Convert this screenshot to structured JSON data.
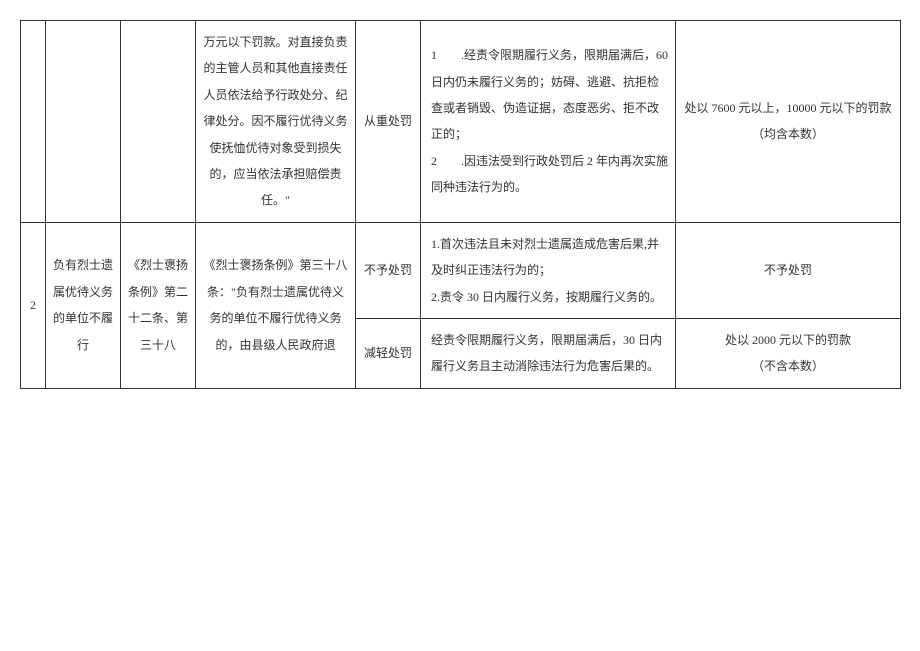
{
  "table": {
    "rows": [
      {
        "num": "",
        "reason": "",
        "basis": "",
        "regulation": "万元以下罚款。对直接负责的主管人员和其他直接责任人员依法给予行政处分、纪律处分。因不履行优待义务使抚恤优待对象受到损失的，应当依法承担赔偿责任。\"",
        "level": "从重处罚",
        "condition": "1　　.经责令限期履行义务，限期届满后，60日内仍未履行义务的；妨碍、逃避、抗拒检查或者销毁、伪造证据，态度恶劣、拒不改正的；\n2　　.因违法受到行政处罚后 2 年内再次实施同种违法行为的。",
        "penalty": "处以 7600 元以上，10000 元以下的罚款（均含本数）"
      },
      {
        "num": "2",
        "reason": "负有烈士遗属优待义务的单位不履行",
        "basis": "《烈士褒扬条例》第二十二条、第三十八",
        "regulation": "《烈士褒扬条例》第三十八条：\"负有烈士遗属优待义务的单位不履行优待义务的，由县级人民政府退",
        "subRows": [
          {
            "level": "不予处罚",
            "condition": "1.首次违法且未对烈士遗属造成危害后果,并及时纠正违法行为的；\n2.责令 30 日内履行义务，按期履行义务的。",
            "penalty": "不予处罚"
          },
          {
            "level": "减轻处罚",
            "condition": "经责令限期履行义务，限期届满后，30 日内履行义务且主动消除违法行为危害后果的。",
            "penalty": "处以 2000 元以下的罚款\n（不含本数）"
          }
        ]
      }
    ]
  }
}
